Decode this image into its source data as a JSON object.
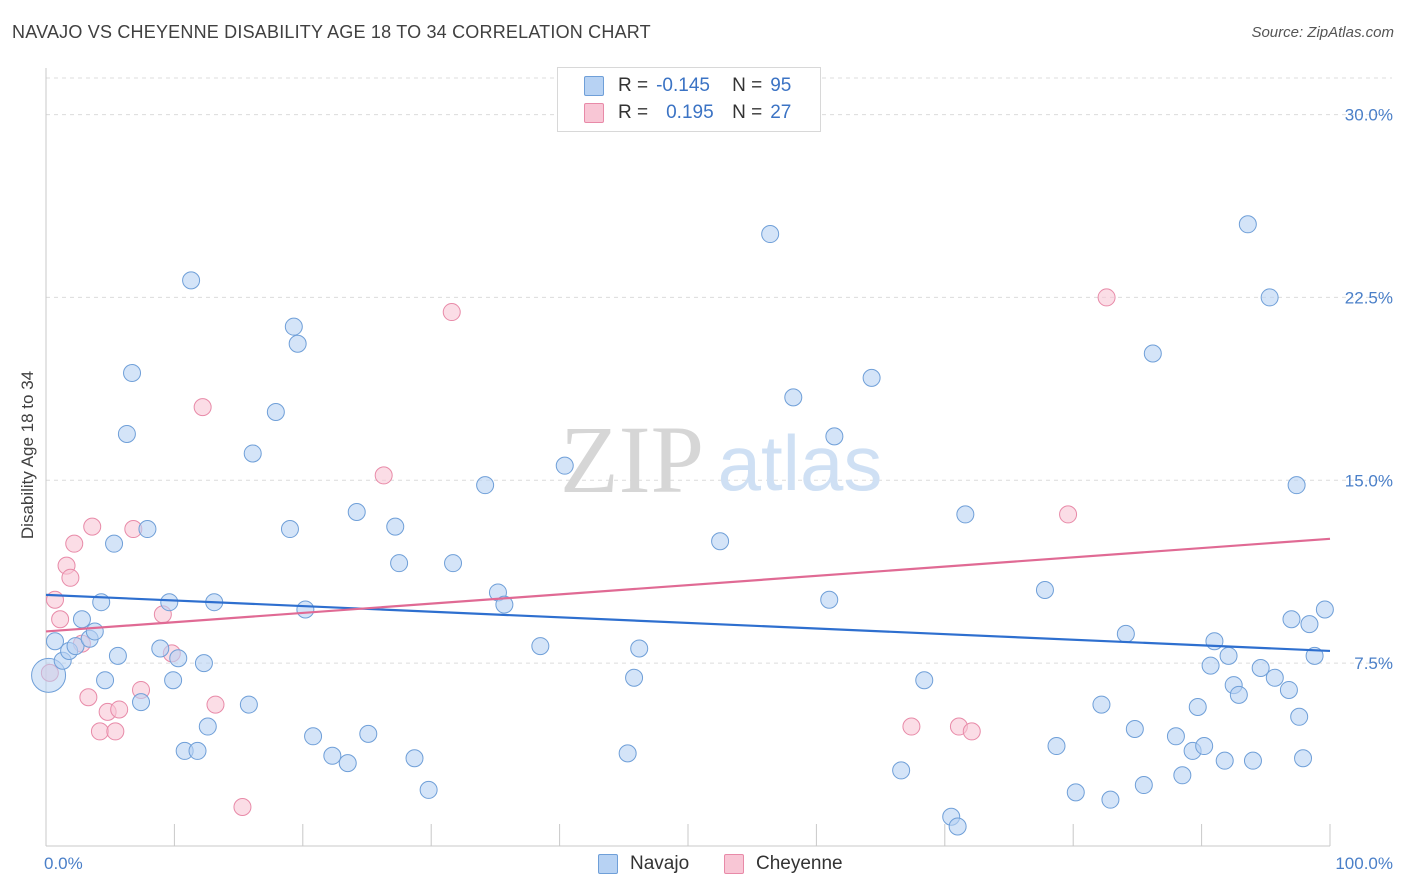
{
  "header": {
    "title": "NAVAJO VS CHEYENNE DISABILITY AGE 18 TO 34 CORRELATION CHART",
    "source": "Source: ZipAtlas.com"
  },
  "watermark": {
    "zip": "ZIP",
    "atlas": "atlas"
  },
  "legend": {
    "rows": [
      {
        "r_label": "R =",
        "r_value": "-0.145",
        "n_label": "N =",
        "n_value": "95"
      },
      {
        "r_label": "R =",
        "r_value": "0.195",
        "n_label": "N =",
        "n_value": "27"
      }
    ]
  },
  "colors": {
    "navajo_fill": "#b7d2f3",
    "navajo_stroke": "#6f9fd8",
    "navajo_line": "#2e6fcf",
    "cheyenne_fill": "#f8c6d5",
    "cheyenne_stroke": "#e88aa8",
    "cheyenne_line": "#e06a94"
  },
  "chart_data": {
    "type": "scatter",
    "title": "NAVAJO VS CHEYENNE DISABILITY AGE 18 TO 34 CORRELATION CHART",
    "xlabel": "",
    "ylabel": "Disability Age 18 to 34",
    "xlim": [
      0,
      100
    ],
    "ylim": [
      0,
      31.5
    ],
    "x_tick_labels": [
      "0.0%",
      "100.0%"
    ],
    "y_ticks": [
      7.5,
      15.0,
      22.5,
      30.0
    ],
    "y_tick_labels": [
      "7.5%",
      "15.0%",
      "22.5%",
      "30.0%"
    ],
    "grid": true,
    "legend_position": "top-center",
    "series": [
      {
        "name": "Navajo",
        "trend": {
          "x": [
            0,
            100
          ],
          "y": [
            10.3,
            8.0
          ]
        },
        "points": [
          [
            0.2,
            7.0
          ],
          [
            0.7,
            8.4
          ],
          [
            1.3,
            7.6
          ],
          [
            1.8,
            8.0
          ],
          [
            2.3,
            8.2
          ],
          [
            2.8,
            9.3
          ],
          [
            3.4,
            8.5
          ],
          [
            3.8,
            8.8
          ],
          [
            4.3,
            10.0
          ],
          [
            4.6,
            6.8
          ],
          [
            5.3,
            12.4
          ],
          [
            5.6,
            7.8
          ],
          [
            6.3,
            16.9
          ],
          [
            6.7,
            19.4
          ],
          [
            7.4,
            5.9
          ],
          [
            7.9,
            13.0
          ],
          [
            8.9,
            8.1
          ],
          [
            9.6,
            10.0
          ],
          [
            9.9,
            6.8
          ],
          [
            10.3,
            7.7
          ],
          [
            10.8,
            3.9
          ],
          [
            11.3,
            23.2
          ],
          [
            11.8,
            3.9
          ],
          [
            12.3,
            7.5
          ],
          [
            12.6,
            4.9
          ],
          [
            13.1,
            10.0
          ],
          [
            15.8,
            5.8
          ],
          [
            16.1,
            16.1
          ],
          [
            17.9,
            17.8
          ],
          [
            19.0,
            13.0
          ],
          [
            19.3,
            21.3
          ],
          [
            19.6,
            20.6
          ],
          [
            20.2,
            9.7
          ],
          [
            20.8,
            4.5
          ],
          [
            22.3,
            3.7
          ],
          [
            23.5,
            3.4
          ],
          [
            24.2,
            13.7
          ],
          [
            25.1,
            4.6
          ],
          [
            27.2,
            13.1
          ],
          [
            27.5,
            11.6
          ],
          [
            28.7,
            3.6
          ],
          [
            29.8,
            2.3
          ],
          [
            31.7,
            11.6
          ],
          [
            34.2,
            14.8
          ],
          [
            35.2,
            10.4
          ],
          [
            35.7,
            9.9
          ],
          [
            38.5,
            8.2
          ],
          [
            40.4,
            15.6
          ],
          [
            45.3,
            3.8
          ],
          [
            45.8,
            6.9
          ],
          [
            46.2,
            8.1
          ],
          [
            52.5,
            12.5
          ],
          [
            56.4,
            25.1
          ],
          [
            58.2,
            18.4
          ],
          [
            61.0,
            10.1
          ],
          [
            61.4,
            16.8
          ],
          [
            64.3,
            19.2
          ],
          [
            66.6,
            3.1
          ],
          [
            68.4,
            6.8
          ],
          [
            70.5,
            1.2
          ],
          [
            71.0,
            0.8
          ],
          [
            71.6,
            13.6
          ],
          [
            77.8,
            10.5
          ],
          [
            78.7,
            4.1
          ],
          [
            80.2,
            2.2
          ],
          [
            82.2,
            5.8
          ],
          [
            82.9,
            1.9
          ],
          [
            84.1,
            8.7
          ],
          [
            84.8,
            4.8
          ],
          [
            85.5,
            2.5
          ],
          [
            86.2,
            20.2
          ],
          [
            88.0,
            4.5
          ],
          [
            88.5,
            2.9
          ],
          [
            89.3,
            3.9
          ],
          [
            89.7,
            5.7
          ],
          [
            90.2,
            4.1
          ],
          [
            90.7,
            7.4
          ],
          [
            91.0,
            8.4
          ],
          [
            91.8,
            3.5
          ],
          [
            92.1,
            7.8
          ],
          [
            92.5,
            6.6
          ],
          [
            92.9,
            6.2
          ],
          [
            93.6,
            25.5
          ],
          [
            94.0,
            3.5
          ],
          [
            94.6,
            7.3
          ],
          [
            95.3,
            22.5
          ],
          [
            95.7,
            6.9
          ],
          [
            96.8,
            6.4
          ],
          [
            97.0,
            9.3
          ],
          [
            97.4,
            14.8
          ],
          [
            97.6,
            5.3
          ],
          [
            97.9,
            3.6
          ],
          [
            98.4,
            9.1
          ],
          [
            98.8,
            7.8
          ],
          [
            99.6,
            9.7
          ]
        ]
      },
      {
        "name": "Cheyenne",
        "trend": {
          "x": [
            0,
            100
          ],
          "y": [
            8.8,
            12.6
          ]
        },
        "points": [
          [
            0.3,
            7.1
          ],
          [
            0.7,
            10.1
          ],
          [
            1.1,
            9.3
          ],
          [
            1.6,
            11.5
          ],
          [
            1.9,
            11.0
          ],
          [
            2.2,
            12.4
          ],
          [
            2.8,
            8.3
          ],
          [
            3.3,
            6.1
          ],
          [
            3.6,
            13.1
          ],
          [
            4.2,
            4.7
          ],
          [
            4.8,
            5.5
          ],
          [
            5.4,
            4.7
          ],
          [
            5.7,
            5.6
          ],
          [
            6.8,
            13.0
          ],
          [
            7.4,
            6.4
          ],
          [
            9.1,
            9.5
          ],
          [
            9.8,
            7.9
          ],
          [
            12.2,
            18.0
          ],
          [
            13.2,
            5.8
          ],
          [
            15.3,
            1.6
          ],
          [
            26.3,
            15.2
          ],
          [
            31.6,
            21.9
          ],
          [
            67.4,
            4.9
          ],
          [
            71.1,
            4.9
          ],
          [
            72.1,
            4.7
          ],
          [
            79.6,
            13.6
          ],
          [
            82.6,
            22.5
          ]
        ]
      }
    ]
  }
}
